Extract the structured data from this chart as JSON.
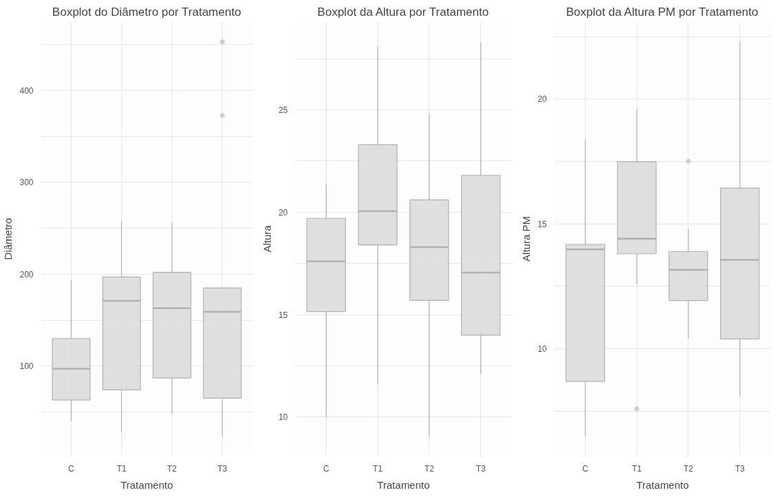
{
  "chart_data": [
    {
      "type": "box",
      "title": "Boxplot do Diâmetro por Tratamento",
      "xlabel": "Tratamento",
      "ylabel": "Diâmetro",
      "categories": [
        "C",
        "T1",
        "T2",
        "T3"
      ],
      "color": "#dcdcdc",
      "grid": true,
      "ylim": [
        2,
        475
      ],
      "yticks": [
        {
          "value": 50,
          "label": null
        },
        100,
        {
          "value": 150,
          "label": null
        },
        200,
        {
          "value": 250,
          "label": null
        },
        300,
        {
          "value": 350,
          "label": null
        },
        400,
        {
          "value": 450,
          "label": null
        }
      ],
      "boxes": [
        {
          "low": 40,
          "q1": 63,
          "median": 97,
          "q3": 130,
          "high": 194
        },
        {
          "low": 28,
          "q1": 74,
          "median": 171,
          "q3": 197,
          "high": 258
        },
        {
          "low": 48,
          "q1": 87,
          "median": 163,
          "q3": 202,
          "high": 256
        },
        {
          "low": 23,
          "q1": 65,
          "median": 159,
          "q3": 185,
          "high": 185,
          "outliers": [
            453,
            373
          ]
        }
      ]
    },
    {
      "type": "box",
      "title": "Boxplot da Altura por Tratamento",
      "xlabel": "Tratamento",
      "ylabel": "Altura",
      "categories": [
        "C",
        "T1",
        "T2",
        "T3"
      ],
      "color": "#dcdcdc",
      "grid": true,
      "ylim": [
        8.1,
        29.3
      ],
      "yticks": [
        10,
        {
          "value": 12.5,
          "label": null
        },
        15,
        {
          "value": 17.5,
          "label": null
        },
        20,
        {
          "value": 22.5,
          "label": null
        },
        25,
        {
          "value": 27.5,
          "label": null
        }
      ],
      "boxes": [
        {
          "low": 10.0,
          "q1": 15.15,
          "median": 17.6,
          "q3": 19.7,
          "high": 21.4
        },
        {
          "low": 11.6,
          "q1": 18.4,
          "median": 20.05,
          "q3": 23.3,
          "high": 28.1
        },
        {
          "low": 9.05,
          "q1": 15.7,
          "median": 18.3,
          "q3": 20.6,
          "high": 24.8
        },
        {
          "low": 12.1,
          "q1": 14.0,
          "median": 17.05,
          "q3": 21.8,
          "high": 28.3
        }
      ]
    },
    {
      "type": "box",
      "title": "Boxplot da Altura PM por Tratamento",
      "xlabel": "Tratamento",
      "ylabel": "Altura PM",
      "categories": [
        "C",
        "T1",
        "T2",
        "T3"
      ],
      "color": "#dcdcdc",
      "grid": true,
      "ylim": [
        5.7,
        23.1
      ],
      "yticks": [
        {
          "value": 7.5,
          "label": null
        },
        10,
        {
          "value": 12.5,
          "label": null
        },
        15,
        {
          "value": 17.5,
          "label": null
        },
        20,
        {
          "value": 22.5,
          "label": null
        }
      ],
      "boxes": [
        {
          "low": 6.5,
          "q1": 8.69,
          "median": 13.98,
          "q3": 14.18,
          "high": 18.4
        },
        {
          "low": 12.6,
          "q1": 13.8,
          "median": 14.41,
          "q3": 17.49,
          "high": 19.6,
          "outliers": [
            7.59
          ]
        },
        {
          "low": 10.4,
          "q1": 11.93,
          "median": 13.16,
          "q3": 13.89,
          "high": 14.8,
          "outliers": [
            17.51
          ]
        },
        {
          "low": 8.1,
          "q1": 10.39,
          "median": 13.56,
          "q3": 16.43,
          "high": 22.3
        }
      ]
    }
  ]
}
